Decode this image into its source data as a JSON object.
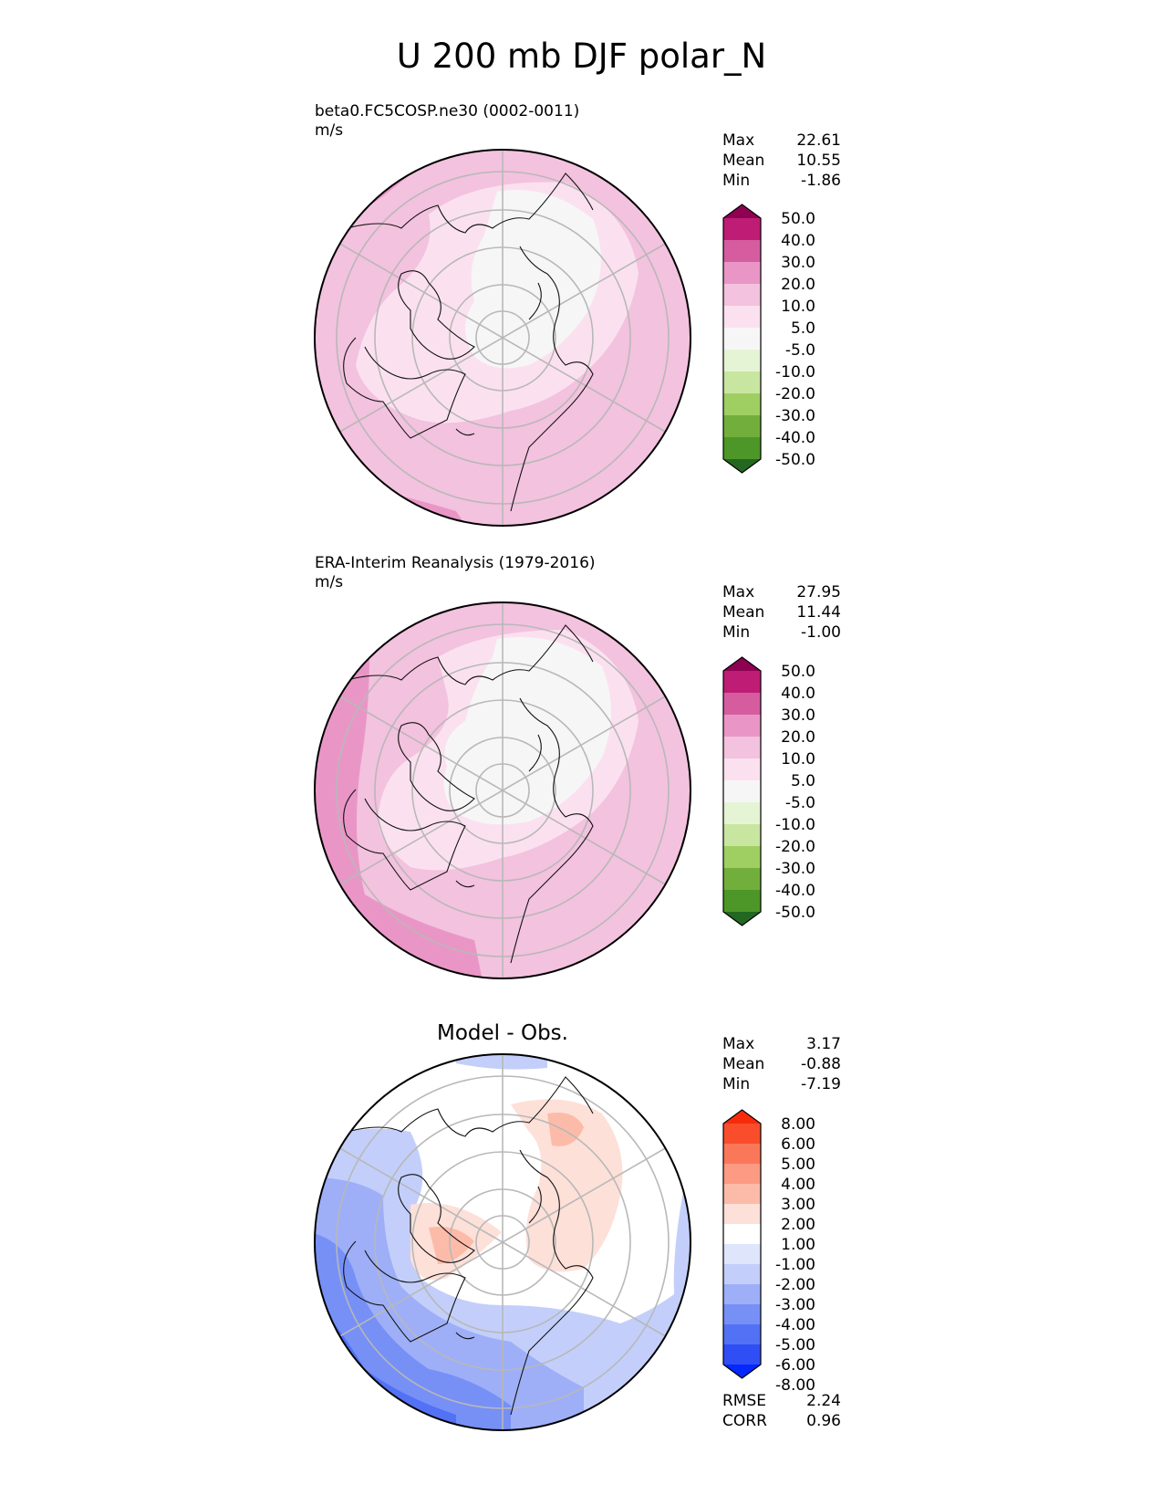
{
  "title": "U 200 mb DJF polar_N",
  "colormaps": {
    "field": [
      "#236820",
      "#4d9628",
      "#72ae3c",
      "#9fcf62",
      "#c8e6a0",
      "#e6f4d6",
      "#f6f6f6",
      "#fbe1ef",
      "#f3c2de",
      "#e996c7",
      "#d55c9f",
      "#bf1c76",
      "#8e0152"
    ],
    "diff": [
      "#0428ff",
      "#2f4ef5",
      "#5271f5",
      "#7690f6",
      "#9eaff8",
      "#c3cffa",
      "#dfe5fb",
      "#ffffff",
      "#fde0d8",
      "#fcbba8",
      "#fc9a83",
      "#fb7759",
      "#f94d2c",
      "#f72b0c"
    ]
  },
  "panels": [
    {
      "id": "test",
      "subtitle": "beta0.FC5COSP.ne30 (0002-0011)",
      "units": "m/s",
      "center_title": "",
      "stats": [
        {
          "label": "Max",
          "value": "22.61"
        },
        {
          "label": "Mean",
          "value": "10.55"
        },
        {
          "label": "Min",
          "value": "-1.86"
        }
      ],
      "colorbar": {
        "labels": [
          "50.0",
          "40.0",
          "30.0",
          "20.0",
          "10.0",
          "5.0",
          "-5.0",
          "-10.0",
          "-20.0",
          "-30.0",
          "-40.0",
          "-50.0"
        ]
      },
      "extra_stats": []
    },
    {
      "id": "ref",
      "subtitle": "ERA-Interim Reanalysis (1979-2016)",
      "units": "m/s",
      "center_title": "",
      "stats": [
        {
          "label": "Max",
          "value": "27.95"
        },
        {
          "label": "Mean",
          "value": "11.44"
        },
        {
          "label": "Min",
          "value": "-1.00"
        }
      ],
      "colorbar": {
        "labels": [
          "50.0",
          "40.0",
          "30.0",
          "20.0",
          "10.0",
          "5.0",
          "-5.0",
          "-10.0",
          "-20.0",
          "-30.0",
          "-40.0",
          "-50.0"
        ]
      },
      "extra_stats": []
    },
    {
      "id": "diff",
      "subtitle": "",
      "units": "",
      "center_title": "Model - Obs.",
      "stats": [
        {
          "label": "Max",
          "value": "3.17"
        },
        {
          "label": "Mean",
          "value": "-0.88"
        },
        {
          "label": "Min",
          "value": "-7.19"
        }
      ],
      "colorbar": {
        "labels": [
          "8.00",
          "6.00",
          "5.00",
          "4.00",
          "3.00",
          "2.00",
          "1.00",
          "-1.00",
          "-2.00",
          "-3.00",
          "-4.00",
          "-5.00",
          "-6.00",
          "-8.00"
        ]
      },
      "extra_stats": [
        {
          "label": "RMSE",
          "value": "2.24"
        },
        {
          "label": "CORR",
          "value": "0.96"
        }
      ]
    }
  ]
}
